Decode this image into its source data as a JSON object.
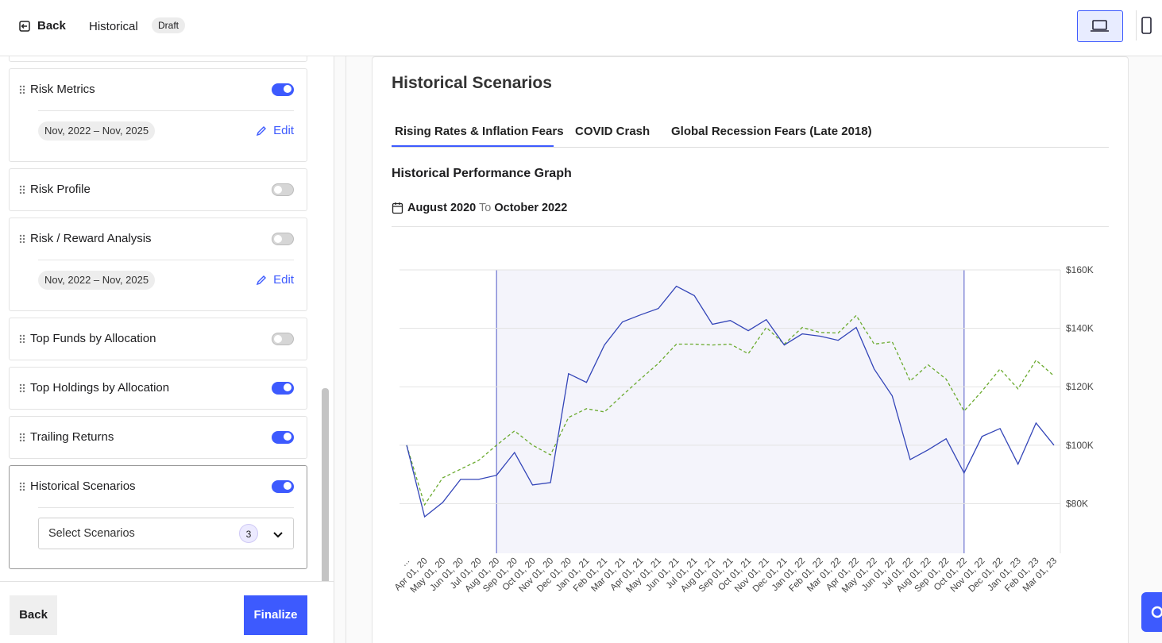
{
  "header": {
    "back": "Back",
    "title": "Historical",
    "badge": "Draft"
  },
  "sidebar": {
    "sections": [
      {
        "title": "Risk Metrics",
        "enabled": true,
        "date_range": "Nov, 2022 – Nov, 2025",
        "action": "Edit"
      },
      {
        "title": "Risk Profile",
        "enabled": false
      },
      {
        "title": "Risk / Reward Analysis",
        "enabled": false,
        "date_range": "Nov, 2022 – Nov, 2025",
        "action": "Edit"
      },
      {
        "title": "Top Funds by Allocation",
        "enabled": false
      },
      {
        "title": "Top Holdings by Allocation",
        "enabled": true
      },
      {
        "title": "Trailing Returns",
        "enabled": true
      },
      {
        "title": "Historical Scenarios",
        "enabled": true,
        "select": {
          "placeholder": "Select Scenarios",
          "count": "3"
        }
      }
    ],
    "footer": {
      "back": "Back",
      "finalize": "Finalize"
    }
  },
  "panel": {
    "title": "Historical Scenarios",
    "tabs": [
      "Rising Rates & Inflation Fears",
      "COVID Crash",
      "Global Recession Fears (Late 2018)"
    ],
    "active_tab": 0,
    "graph_title": "Historical Performance Graph",
    "range": {
      "start": "August 2020",
      "separator": "To",
      "end": "October 2022"
    }
  },
  "chart_data": {
    "type": "line",
    "categories": [
      "...",
      "Apr 01, 20",
      "May 01, 20",
      "Jun 01, 20",
      "Jul 01, 20",
      "Aug 01, 20",
      "Sep 01, 20",
      "Oct 01, 20",
      "Nov 01, 20",
      "Dec 01, 20",
      "Jan 01, 21",
      "Feb 01, 21",
      "Mar 01, 21",
      "Apr 01, 21",
      "May 01, 21",
      "Jun 01, 21",
      "Jul 01, 21",
      "Aug 01, 21",
      "Sep 01, 21",
      "Oct 01, 21",
      "Nov 01, 21",
      "Dec 01, 21",
      "Jan 01, 22",
      "Feb 01, 22",
      "Mar 01, 22",
      "Apr 01, 22",
      "May 01, 22",
      "Jun 01, 22",
      "Jul 01, 22",
      "Aug 01, 22",
      "Sep 01, 22",
      "Oct 01, 22",
      "Nov 01, 22",
      "Dec 01, 22",
      "Jan 01, 23",
      "Feb 01, 23",
      "Mar 01, 23"
    ],
    "series": [
      {
        "color": "#3345b8",
        "dashed": false,
        "values": [
          100000,
          75500,
          80400,
          88300,
          88300,
          89700,
          97500,
          86400,
          87200,
          124500,
          121500,
          134300,
          142200,
          144600,
          146800,
          154400,
          151200,
          141400,
          142700,
          139200,
          143000,
          134300,
          138100,
          137300,
          135900,
          140300,
          126100,
          116900,
          95100,
          98400,
          102200,
          90500,
          103000,
          105700,
          93500,
          107600,
          100000
        ]
      },
      {
        "color": "#6aaa2e",
        "dashed": true,
        "values": [
          100000,
          79600,
          88800,
          91800,
          94800,
          100000,
          104900,
          100000,
          96700,
          109500,
          112500,
          111400,
          117100,
          122600,
          128000,
          134600,
          134600,
          134300,
          134600,
          131300,
          140300,
          134600,
          140300,
          138600,
          138400,
          144400,
          134600,
          135400,
          122000,
          127500,
          122600,
          111700,
          118500,
          126100,
          119300,
          129100,
          123700
        ]
      }
    ],
    "highlight_start": "Aug 01, 20",
    "highlight_end": "Oct 01, 22",
    "ylim": [
      63000,
      160000
    ],
    "yticks": [
      {
        "value": 80000,
        "label": "$80K"
      },
      {
        "value": 100000,
        "label": "$100K"
      },
      {
        "value": 120000,
        "label": "$120K"
      },
      {
        "value": 140000,
        "label": "$140K"
      },
      {
        "value": 160000,
        "label": "$160K"
      }
    ],
    "grid": true,
    "y_axis_side": "right"
  }
}
